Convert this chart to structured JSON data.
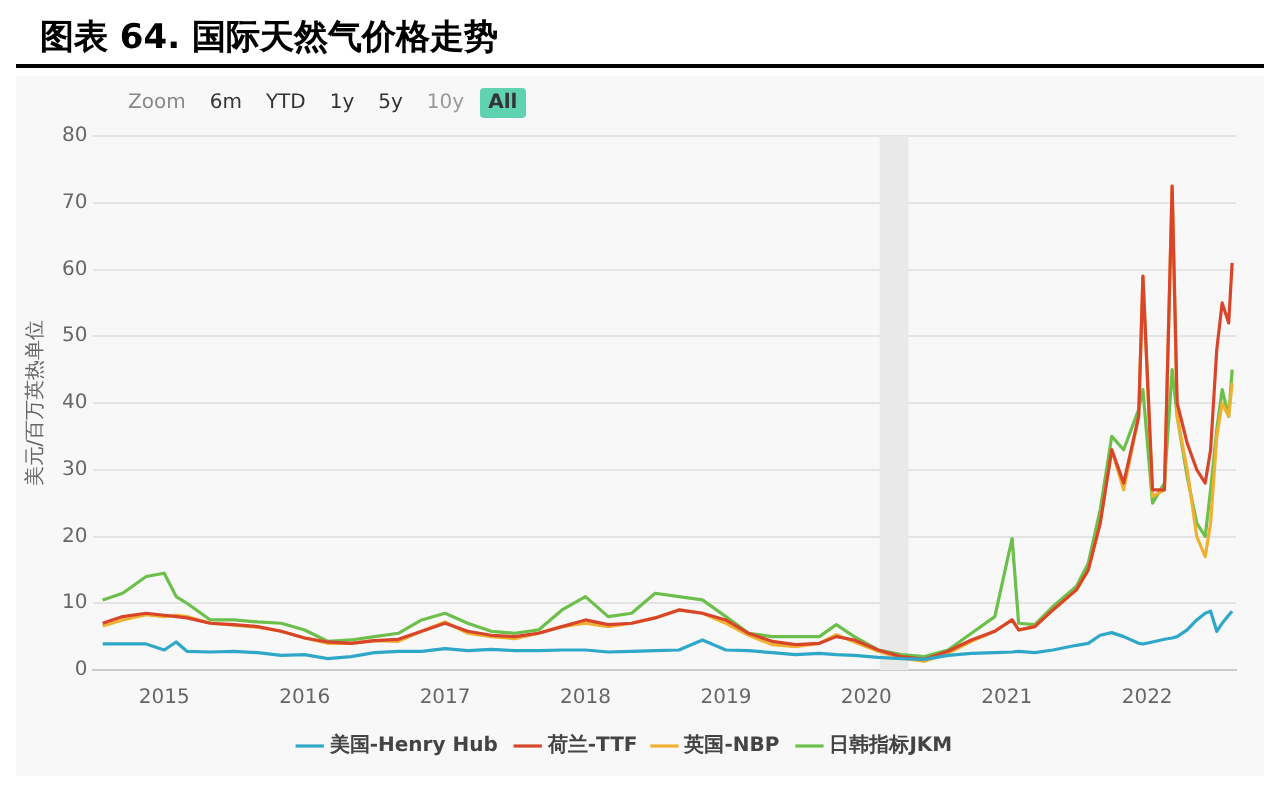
{
  "chart_data": {
    "type": "line",
    "title": "图表 64. 国际天然气价格走势",
    "ylabel": "美元/百万英热单位",
    "annotations": [
      "Zoom",
      "6m",
      "YTD",
      "1y",
      "5y",
      "10y",
      "All"
    ],
    "x": [
      "2014-07-25",
      "2014-09-15",
      "2014-11-15",
      "2015-01-01",
      "2015-02-01",
      "2015-03-01",
      "2015-05-01",
      "2015-07-01",
      "2015-09-01",
      "2015-11-01",
      "2016-01-01",
      "2016-03-01",
      "2016-05-01",
      "2016-07-01",
      "2016-09-01",
      "2016-11-01",
      "2017-01-01",
      "2017-03-01",
      "2017-05-01",
      "2017-07-01",
      "2017-09-01",
      "2017-11-01",
      "2018-01-01",
      "2018-03-01",
      "2018-05-01",
      "2018-07-01",
      "2018-09-01",
      "2018-11-01",
      "2019-01-01",
      "2019-03-01",
      "2019-05-01",
      "2019-07-01",
      "2019-09-01",
      "2019-10-15",
      "2019-12-01",
      "2020-02-01",
      "2020-04-01",
      "2020-06-01",
      "2020-08-01",
      "2020-10-01",
      "2020-12-01",
      "2021-01-15",
      "2021-02-01",
      "2021-03-15",
      "2021-05-01",
      "2021-07-01",
      "2021-08-01",
      "2021-09-01",
      "2021-10-01",
      "2021-11-01",
      "2021-12-10",
      "2021-12-21",
      "2022-01-15",
      "2022-02-15",
      "2022-03-07",
      "2022-03-20",
      "2022-04-15",
      "2022-05-10",
      "2022-06-01",
      "2022-06-15",
      "2022-07-01",
      "2022-07-15",
      "2022-08-01",
      "2022-08-10"
    ],
    "series": [
      {
        "name": "美国-Henry Hub",
        "color": "#2fa7c9",
        "values": [
          3.9,
          3.9,
          3.9,
          3.0,
          4.2,
          2.8,
          2.7,
          2.8,
          2.6,
          2.2,
          2.3,
          1.7,
          2.0,
          2.6,
          2.8,
          2.8,
          3.2,
          2.9,
          3.1,
          2.9,
          2.9,
          3.0,
          3.0,
          2.7,
          2.8,
          2.9,
          3.0,
          4.5,
          3.0,
          2.9,
          2.6,
          2.3,
          2.5,
          2.3,
          2.2,
          1.9,
          1.7,
          1.6,
          2.2,
          2.5,
          2.6,
          2.7,
          2.8,
          2.6,
          3.0,
          3.7,
          4.0,
          5.2,
          5.6,
          5.0,
          4.0,
          3.9,
          4.2,
          4.6,
          4.8,
          5.0,
          6.0,
          7.5,
          8.5,
          8.8,
          5.8,
          7.0,
          8.2,
          8.8
        ]
      },
      {
        "name": "荷兰-TTF",
        "color": "#d9452b",
        "values": [
          7.0,
          8.0,
          8.5,
          8.2,
          8.0,
          7.8,
          7.0,
          6.8,
          6.5,
          5.8,
          4.8,
          4.2,
          4.0,
          4.4,
          4.6,
          5.8,
          7.0,
          5.8,
          5.2,
          5.0,
          5.5,
          6.5,
          7.5,
          6.8,
          7.0,
          7.8,
          9.0,
          8.5,
          7.5,
          5.5,
          4.3,
          3.8,
          4.0,
          5.0,
          4.5,
          3.0,
          2.0,
          1.6,
          2.8,
          4.5,
          5.8,
          7.5,
          6.0,
          6.5,
          9.0,
          12.0,
          15.0,
          22.0,
          33.0,
          28.0,
          38.0,
          59.0,
          27.0,
          27.0,
          72.5,
          40.0,
          34.0,
          30.0,
          28.0,
          33.0,
          48.0,
          55.0,
          52.0,
          61.0
        ]
      },
      {
        "name": "英国-NBP",
        "color": "#f0b030",
        "values": [
          6.6,
          7.5,
          8.3,
          8.0,
          8.2,
          8.0,
          7.0,
          6.7,
          6.4,
          5.8,
          4.8,
          4.0,
          4.0,
          4.4,
          4.3,
          5.8,
          7.2,
          5.5,
          5.0,
          4.7,
          5.5,
          6.5,
          7.0,
          6.5,
          7.0,
          7.8,
          9.0,
          8.5,
          7.0,
          5.2,
          3.8,
          3.5,
          4.0,
          5.3,
          4.2,
          2.8,
          1.8,
          1.3,
          2.5,
          4.3,
          5.8,
          7.5,
          6.0,
          6.5,
          9.0,
          12.0,
          15.0,
          22.0,
          33.0,
          27.0,
          38.0,
          59.0,
          26.0,
          27.0,
          72.5,
          38.0,
          30.0,
          20.0,
          17.0,
          22.0,
          35.0,
          40.0,
          38.0,
          43.0
        ]
      },
      {
        "name": "日韩指标JKM",
        "color": "#6cbf4a",
        "values": [
          10.5,
          11.5,
          14.0,
          14.5,
          11.0,
          10.0,
          7.5,
          7.5,
          7.2,
          7.0,
          6.0,
          4.3,
          4.5,
          5.0,
          5.5,
          7.5,
          8.5,
          7.0,
          5.8,
          5.5,
          6.0,
          9.0,
          11.0,
          8.0,
          8.5,
          11.5,
          11.0,
          10.5,
          8.0,
          5.5,
          5.0,
          5.0,
          5.0,
          6.8,
          5.0,
          3.0,
          2.3,
          2.0,
          3.0,
          5.5,
          8.0,
          19.7,
          7.0,
          6.8,
          9.5,
          12.5,
          16.0,
          24.0,
          35.0,
          33.0,
          39.0,
          42.0,
          25.0,
          28.0,
          45.0,
          38.0,
          29.0,
          22.0,
          20.0,
          27.0,
          36.0,
          42.0,
          38.0,
          45.0
        ]
      }
    ],
    "xlim": [
      "2014-07-01",
      "2022-08-20"
    ],
    "xticks": [
      "2015",
      "2016",
      "2017",
      "2018",
      "2019",
      "2020",
      "2021",
      "2022"
    ],
    "ylim": [
      0,
      80
    ],
    "yticks": [
      0,
      10,
      20,
      30,
      40,
      50,
      60,
      70,
      80
    ],
    "bands": [
      {
        "axis": "x",
        "from": "2020-02-05",
        "to": "2020-04-20",
        "color": "#e9e9e9"
      }
    ],
    "grid": "y",
    "legend": "bottom",
    "marker": "none",
    "line_style": "solid"
  }
}
